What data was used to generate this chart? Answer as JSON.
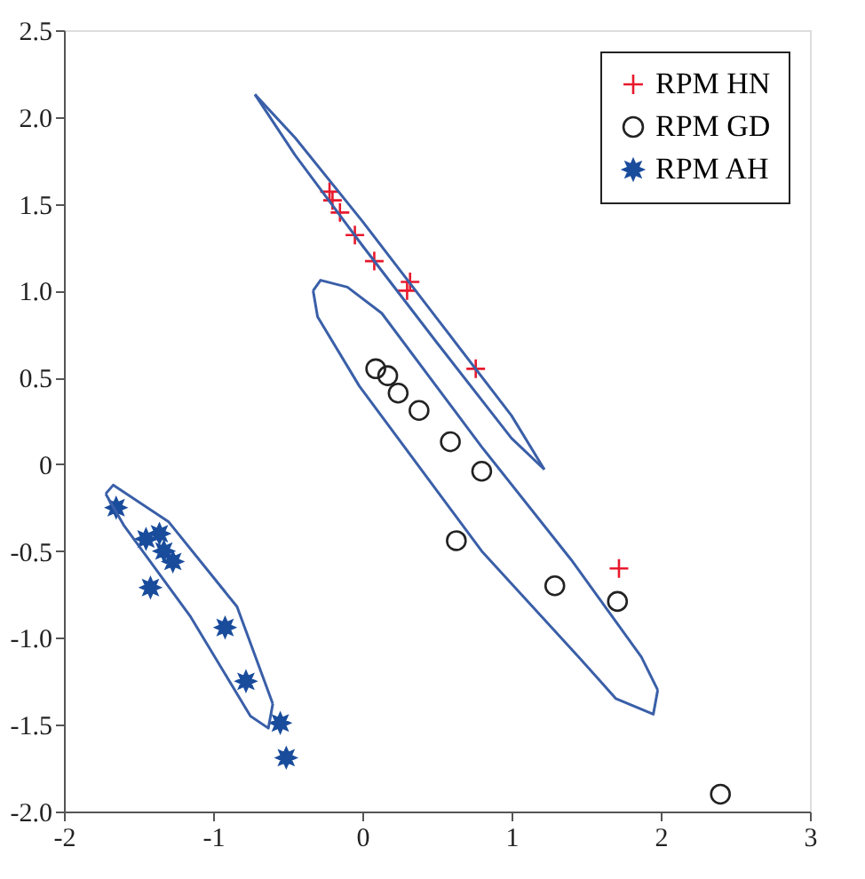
{
  "chart_data": {
    "type": "scatter",
    "legend": "top right",
    "grid": false,
    "xlim": [
      -2,
      3
    ],
    "ylim": [
      -2,
      2.5
    ],
    "xticks": [
      -2,
      -1,
      0,
      1,
      2,
      3
    ],
    "yticks": [
      {
        "value": -2,
        "label": "-2.0"
      },
      {
        "value": -1.5,
        "label": "-1.5"
      },
      {
        "value": -1,
        "label": "-1.0"
      },
      {
        "value": -0.5,
        "label": "-0.5"
      },
      0,
      {
        "value": 0.5,
        "label": "0.5"
      },
      {
        "value": 1,
        "label": "1.0"
      },
      {
        "value": 1.5,
        "label": "1.5"
      },
      {
        "value": 2,
        "label": "2.0"
      },
      {
        "value": 2.5,
        "label": "2.5"
      }
    ],
    "series": [
      {
        "name": "RPM HN",
        "type": "scatter",
        "marker": "cross",
        "color": "#e8192c",
        "x": [
          -0.22,
          -0.2,
          -0.15,
          -0.05,
          0.08,
          0.32,
          0.3,
          0.76,
          1.72
        ],
        "values": [
          1.57,
          1.52,
          1.45,
          1.32,
          1.17,
          1.05,
          1.0,
          0.55,
          -0.6
        ]
      },
      {
        "name": "RPM GD",
        "type": "scatter",
        "marker": "circle",
        "color": "#222222",
        "x": [
          0.09,
          0.17,
          0.24,
          0.38,
          0.59,
          0.8,
          0.63,
          1.29,
          1.71,
          2.4
        ],
        "values": [
          0.55,
          0.51,
          0.41,
          0.31,
          0.13,
          -0.04,
          -0.44,
          -0.7,
          -0.79,
          -1.9
        ]
      },
      {
        "name": "RPM AH",
        "type": "scatter",
        "marker": "star",
        "color": "#1a4c9c",
        "x": [
          -1.65,
          -1.45,
          -1.36,
          -1.33,
          -1.27,
          -1.42,
          -0.92,
          -0.78,
          -0.55,
          -0.51
        ],
        "values": [
          -0.25,
          -0.43,
          -0.4,
          -0.5,
          -0.56,
          -0.71,
          -0.94,
          -1.25,
          -1.49,
          -1.69
        ]
      },
      {
        "type": "line",
        "color": "#3a5fa8",
        "x": [
          -0.72,
          -0.45,
          0.0,
          0.5,
          1.0,
          1.22
        ],
        "values": [
          2.13,
          1.88,
          1.4,
          0.84,
          0.28,
          -0.03
        ]
      },
      {
        "type": "line",
        "color": "#3a5fa8",
        "x": [
          -0.72,
          -0.45,
          0.0,
          0.5,
          1.0,
          1.22
        ],
        "values": [
          2.13,
          1.78,
          1.26,
          0.7,
          0.15,
          -0.03
        ]
      },
      {
        "type": "line",
        "color": "#3a5fa8",
        "x": [
          -0.33,
          -0.28,
          -0.1,
          0.13,
          0.8,
          1.4,
          1.87,
          1.98
        ],
        "values": [
          1.0,
          1.06,
          1.02,
          0.87,
          0.1,
          -0.55,
          -1.11,
          -1.3
        ]
      },
      {
        "type": "line",
        "color": "#3a5fa8",
        "x": [
          -0.33,
          -0.3,
          -0.02,
          0.8,
          1.45,
          1.7,
          1.95,
          1.98
        ],
        "values": [
          1.0,
          0.85,
          0.45,
          -0.5,
          -1.11,
          -1.35,
          -1.44,
          -1.3
        ]
      },
      {
        "type": "line",
        "color": "#3a5fa8",
        "x": [
          -1.72,
          -1.67,
          -1.3,
          -0.84,
          -0.6
        ],
        "values": [
          -0.17,
          -0.12,
          -0.33,
          -0.82,
          -1.38
        ]
      },
      {
        "type": "line",
        "color": "#3a5fa8",
        "x": [
          -1.72,
          -1.6,
          -1.15,
          -0.75,
          -0.63,
          -0.6
        ],
        "values": [
          -0.17,
          -0.35,
          -0.88,
          -1.45,
          -1.52,
          -1.38
        ]
      }
    ]
  }
}
